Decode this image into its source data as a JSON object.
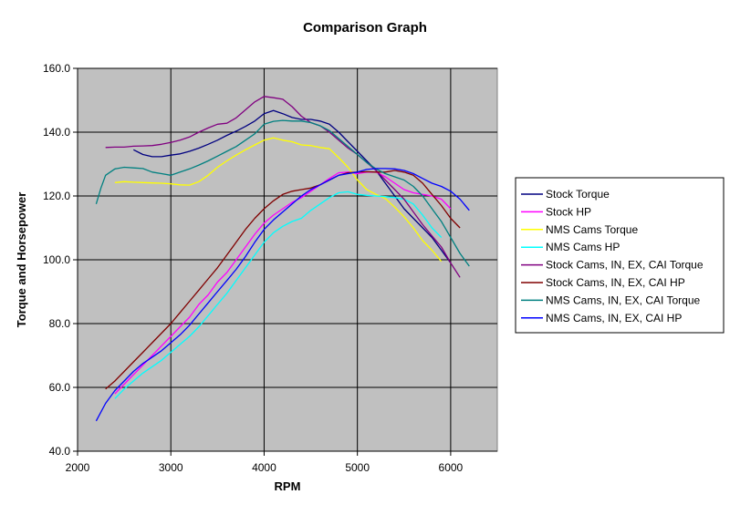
{
  "chart_data": {
    "type": "line",
    "title": "Comparison Graph",
    "xlabel": "RPM",
    "ylabel": "Torque and Horsepower",
    "xlim": [
      2000,
      6500
    ],
    "ylim": [
      40,
      160
    ],
    "x_ticks": [
      "2000",
      "3000",
      "4000",
      "5000",
      "6000"
    ],
    "y_ticks": [
      "40.0",
      "60.0",
      "80.0",
      "100.0",
      "120.0",
      "140.0",
      "160.0"
    ],
    "grid": true,
    "legend_position": "right",
    "plot_background": "#c0c0c0",
    "series": [
      {
        "name": "Stock Torque",
        "color": "#000080",
        "points": [
          [
            2600,
            134.5
          ],
          [
            2700,
            133
          ],
          [
            2800,
            132.3
          ],
          [
            2900,
            132.3
          ],
          [
            3000,
            132.8
          ],
          [
            3100,
            133.2
          ],
          [
            3200,
            134
          ],
          [
            3300,
            135
          ],
          [
            3400,
            136.2
          ],
          [
            3500,
            137.5
          ],
          [
            3600,
            139
          ],
          [
            3700,
            140.3
          ],
          [
            3800,
            141.8
          ],
          [
            3900,
            143.5
          ],
          [
            4000,
            145.8
          ],
          [
            4100,
            146.8
          ],
          [
            4200,
            145.8
          ],
          [
            4300,
            144.6
          ],
          [
            4400,
            144
          ],
          [
            4500,
            144
          ],
          [
            4600,
            143.5
          ],
          [
            4700,
            142.5
          ],
          [
            4800,
            140
          ],
          [
            4900,
            137
          ],
          [
            5000,
            134
          ],
          [
            5100,
            131
          ],
          [
            5200,
            128
          ],
          [
            5300,
            124
          ],
          [
            5400,
            120
          ],
          [
            5500,
            116
          ],
          [
            5600,
            113
          ],
          [
            5700,
            110
          ],
          [
            5800,
            107
          ],
          [
            5900,
            103
          ],
          [
            6000,
            99
          ]
        ]
      },
      {
        "name": "Stock HP",
        "color": "#ff00ff",
        "points": [
          [
            2400,
            58
          ],
          [
            2500,
            61
          ],
          [
            2600,
            64
          ],
          [
            2700,
            67
          ],
          [
            2800,
            70
          ],
          [
            2900,
            73
          ],
          [
            3000,
            76
          ],
          [
            3100,
            79
          ],
          [
            3200,
            82
          ],
          [
            3300,
            86
          ],
          [
            3400,
            89
          ],
          [
            3500,
            93
          ],
          [
            3600,
            96
          ],
          [
            3700,
            100
          ],
          [
            3800,
            104
          ],
          [
            3900,
            108
          ],
          [
            4000,
            111.5
          ],
          [
            4100,
            114
          ],
          [
            4200,
            116
          ],
          [
            4300,
            118
          ],
          [
            4400,
            119.5
          ],
          [
            4500,
            121.5
          ],
          [
            4600,
            123.5
          ],
          [
            4700,
            125.5
          ],
          [
            4800,
            127.3
          ],
          [
            4900,
            127.5
          ],
          [
            5000,
            127
          ],
          [
            5100,
            127.5
          ],
          [
            5200,
            127.5
          ],
          [
            5300,
            126
          ],
          [
            5400,
            124
          ],
          [
            5500,
            122
          ],
          [
            5600,
            121
          ],
          [
            5700,
            120.5
          ],
          [
            5800,
            120
          ],
          [
            5900,
            119
          ],
          [
            6000,
            116
          ]
        ]
      },
      {
        "name": "NMS Cams Torque",
        "color": "#ffff00",
        "points": [
          [
            2400,
            124.2
          ],
          [
            2500,
            124.5
          ],
          [
            2600,
            124.3
          ],
          [
            2700,
            124.2
          ],
          [
            2800,
            124.1
          ],
          [
            2900,
            124
          ],
          [
            3000,
            123.8
          ],
          [
            3100,
            123.5
          ],
          [
            3200,
            123.4
          ],
          [
            3300,
            124.5
          ],
          [
            3400,
            126.5
          ],
          [
            3500,
            129
          ],
          [
            3600,
            131
          ],
          [
            3700,
            132.8
          ],
          [
            3800,
            134.5
          ],
          [
            3900,
            136
          ],
          [
            4000,
            137.5
          ],
          [
            4100,
            138.2
          ],
          [
            4200,
            137.5
          ],
          [
            4300,
            137
          ],
          [
            4400,
            136
          ],
          [
            4500,
            135.8
          ],
          [
            4600,
            135.2
          ],
          [
            4700,
            134.8
          ],
          [
            4800,
            132
          ],
          [
            4900,
            129
          ],
          [
            5000,
            125
          ],
          [
            5100,
            122
          ],
          [
            5200,
            120.5
          ],
          [
            5300,
            119.2
          ],
          [
            5400,
            116.5
          ],
          [
            5500,
            113.5
          ],
          [
            5600,
            110
          ],
          [
            5700,
            106
          ],
          [
            5800,
            103
          ],
          [
            5900,
            99.5
          ]
        ]
      },
      {
        "name": "NMS Cams HP",
        "color": "#00ffff",
        "points": [
          [
            2400,
            56.5
          ],
          [
            2500,
            59.5
          ],
          [
            2600,
            62
          ],
          [
            2700,
            64.5
          ],
          [
            2800,
            66.5
          ],
          [
            2900,
            68.5
          ],
          [
            3000,
            71
          ],
          [
            3100,
            73.5
          ],
          [
            3200,
            76
          ],
          [
            3300,
            79
          ],
          [
            3400,
            82.5
          ],
          [
            3500,
            86
          ],
          [
            3600,
            89.5
          ],
          [
            3700,
            93.5
          ],
          [
            3800,
            97.5
          ],
          [
            3900,
            101.5
          ],
          [
            4000,
            105.5
          ],
          [
            4100,
            108.5
          ],
          [
            4200,
            110.5
          ],
          [
            4300,
            112
          ],
          [
            4400,
            113
          ],
          [
            4500,
            115.5
          ],
          [
            4600,
            117.5
          ],
          [
            4700,
            119.5
          ],
          [
            4800,
            121
          ],
          [
            4900,
            121.3
          ],
          [
            5000,
            120.5
          ],
          [
            5100,
            120.2
          ],
          [
            5200,
            120
          ],
          [
            5300,
            119.8
          ],
          [
            5400,
            119.5
          ],
          [
            5500,
            119
          ],
          [
            5600,
            117.5
          ],
          [
            5700,
            114
          ],
          [
            5800,
            110
          ],
          [
            5900,
            107
          ]
        ]
      },
      {
        "name": "Stock Cams, IN, EX, CAI Torque",
        "color": "#800080",
        "points": [
          [
            2300,
            135.2
          ],
          [
            2400,
            135.3
          ],
          [
            2500,
            135.3
          ],
          [
            2600,
            135.6
          ],
          [
            2700,
            135.7
          ],
          [
            2800,
            135.8
          ],
          [
            2900,
            136.2
          ],
          [
            3000,
            136.8
          ],
          [
            3100,
            137.5
          ],
          [
            3200,
            138.5
          ],
          [
            3300,
            140
          ],
          [
            3400,
            141.3
          ],
          [
            3500,
            142.5
          ],
          [
            3600,
            142.8
          ],
          [
            3700,
            144.5
          ],
          [
            3800,
            147
          ],
          [
            3900,
            149.5
          ],
          [
            4000,
            151.2
          ],
          [
            4100,
            150.8
          ],
          [
            4200,
            150.3
          ],
          [
            4300,
            148
          ],
          [
            4400,
            145
          ],
          [
            4500,
            143
          ],
          [
            4600,
            142
          ],
          [
            4700,
            140
          ],
          [
            4800,
            137.5
          ],
          [
            4900,
            135
          ],
          [
            5000,
            133
          ],
          [
            5100,
            130.5
          ],
          [
            5200,
            128
          ],
          [
            5300,
            125
          ],
          [
            5400,
            122
          ],
          [
            5500,
            119
          ],
          [
            5600,
            115
          ],
          [
            5700,
            111
          ],
          [
            5800,
            107.5
          ],
          [
            5900,
            104
          ],
          [
            6000,
            99
          ],
          [
            6100,
            94.5
          ]
        ]
      },
      {
        "name": "Stock Cams, IN, EX, CAI HP",
        "color": "#800000",
        "points": [
          [
            2300,
            59.5
          ],
          [
            2400,
            62
          ],
          [
            2500,
            65
          ],
          [
            2600,
            68
          ],
          [
            2700,
            71
          ],
          [
            2800,
            74
          ],
          [
            2900,
            77
          ],
          [
            3000,
            80
          ],
          [
            3100,
            83.5
          ],
          [
            3200,
            87
          ],
          [
            3300,
            90.5
          ],
          [
            3400,
            94
          ],
          [
            3500,
            97.5
          ],
          [
            3600,
            101.5
          ],
          [
            3700,
            105.5
          ],
          [
            3800,
            109.5
          ],
          [
            3900,
            113
          ],
          [
            4000,
            116
          ],
          [
            4100,
            118.5
          ],
          [
            4200,
            120.5
          ],
          [
            4300,
            121.5
          ],
          [
            4400,
            122
          ],
          [
            4500,
            122.5
          ],
          [
            4600,
            123.5
          ],
          [
            4700,
            125
          ],
          [
            4800,
            126.5
          ],
          [
            4900,
            127.3
          ],
          [
            5000,
            127.5
          ],
          [
            5100,
            127.6
          ],
          [
            5200,
            127.5
          ],
          [
            5300,
            127.5
          ],
          [
            5400,
            128
          ],
          [
            5500,
            127.5
          ],
          [
            5600,
            126.5
          ],
          [
            5700,
            124
          ],
          [
            5800,
            120.5
          ],
          [
            5900,
            117
          ],
          [
            6000,
            113
          ],
          [
            6100,
            110
          ]
        ]
      },
      {
        "name": "NMS Cams, IN, EX, CAI Torque",
        "color": "#008080",
        "points": [
          [
            2200,
            117.5
          ],
          [
            2250,
            122.5
          ],
          [
            2300,
            126.5
          ],
          [
            2400,
            128.5
          ],
          [
            2500,
            129
          ],
          [
            2600,
            128.8
          ],
          [
            2700,
            128.6
          ],
          [
            2800,
            127.5
          ],
          [
            2900,
            127
          ],
          [
            3000,
            126.5
          ],
          [
            3100,
            127.5
          ],
          [
            3200,
            128.5
          ],
          [
            3300,
            129.7
          ],
          [
            3400,
            131
          ],
          [
            3500,
            132.5
          ],
          [
            3600,
            134
          ],
          [
            3700,
            135.5
          ],
          [
            3800,
            137.5
          ],
          [
            3900,
            139.5
          ],
          [
            4000,
            142.5
          ],
          [
            4100,
            143.4
          ],
          [
            4200,
            143.7
          ],
          [
            4300,
            143.5
          ],
          [
            4400,
            143.5
          ],
          [
            4500,
            143
          ],
          [
            4600,
            142
          ],
          [
            4700,
            140.5
          ],
          [
            4800,
            138
          ],
          [
            4900,
            135.5
          ],
          [
            5000,
            133
          ],
          [
            5100,
            130.5
          ],
          [
            5200,
            128.5
          ],
          [
            5300,
            127
          ],
          [
            5400,
            126
          ],
          [
            5500,
            125
          ],
          [
            5600,
            123
          ],
          [
            5700,
            120
          ],
          [
            5800,
            116
          ],
          [
            5900,
            112
          ],
          [
            6000,
            107
          ],
          [
            6100,
            102
          ],
          [
            6200,
            98
          ]
        ]
      },
      {
        "name": "NMS Cams, IN, EX, CAI HP",
        "color": "#0000ff",
        "points": [
          [
            2200,
            49.5
          ],
          [
            2300,
            55
          ],
          [
            2400,
            59
          ],
          [
            2500,
            62
          ],
          [
            2600,
            65
          ],
          [
            2700,
            67.5
          ],
          [
            2800,
            69.5
          ],
          [
            2900,
            71.5
          ],
          [
            3000,
            74
          ],
          [
            3100,
            76.5
          ],
          [
            3200,
            79.5
          ],
          [
            3300,
            83
          ],
          [
            3400,
            86.5
          ],
          [
            3500,
            90
          ],
          [
            3600,
            93.5
          ],
          [
            3700,
            97
          ],
          [
            3800,
            101
          ],
          [
            3900,
            105.5
          ],
          [
            4000,
            109.5
          ],
          [
            4100,
            112.5
          ],
          [
            4200,
            115
          ],
          [
            4300,
            117.5
          ],
          [
            4400,
            120
          ],
          [
            4500,
            122
          ],
          [
            4600,
            123.5
          ],
          [
            4700,
            125
          ],
          [
            4800,
            126.5
          ],
          [
            4900,
            127
          ],
          [
            5000,
            127.5
          ],
          [
            5100,
            128.3
          ],
          [
            5200,
            128.6
          ],
          [
            5300,
            128.6
          ],
          [
            5400,
            128.5
          ],
          [
            5500,
            128
          ],
          [
            5600,
            127
          ],
          [
            5700,
            125.5
          ],
          [
            5800,
            124
          ],
          [
            5900,
            123
          ],
          [
            6000,
            121.5
          ],
          [
            6100,
            119
          ],
          [
            6200,
            115.5
          ]
        ]
      }
    ]
  }
}
